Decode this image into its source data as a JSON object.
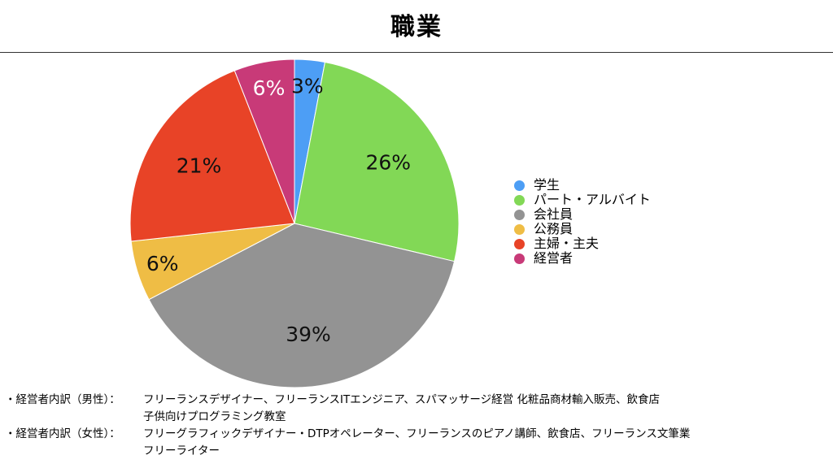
{
  "chart_data": {
    "type": "pie",
    "title": "職業",
    "start_angle_deg": 0,
    "direction": "clockwise",
    "slices": [
      {
        "label": "学生",
        "value": 3,
        "display": "3%",
        "color": "#4d9ef5"
      },
      {
        "label": "パート・アルバイト",
        "value": 26,
        "display": "26%",
        "color": "#82d856"
      },
      {
        "label": "会社員",
        "value": 39,
        "display": "39%",
        "color": "#939393"
      },
      {
        "label": "公務員",
        "value": 6,
        "display": "6%",
        "color": "#efbd45"
      },
      {
        "label": "主婦・主夫",
        "value": 21,
        "display": "21%",
        "color": "#e84327"
      },
      {
        "label": "経営者",
        "value": 6,
        "display": "6%",
        "color": "#c83a78"
      }
    ],
    "legend_placement": "right"
  },
  "notes": [
    {
      "label": "・経営者内訳（男性）：",
      "lines": [
        "フリーランスデザイナー、フリーランスITエンジニア、スパマッサージ経営 化粧品商材輸入販売、飲食店",
        "子供向けプログラミング教室"
      ]
    },
    {
      "label": "・経営者内訳（女性）：",
      "lines": [
        "フリーグラフィックデザイナー・DTPオペレーター、フリーランスのピアノ講師、飲食店、フリーランス文筆業",
        "フリーライター"
      ]
    }
  ]
}
